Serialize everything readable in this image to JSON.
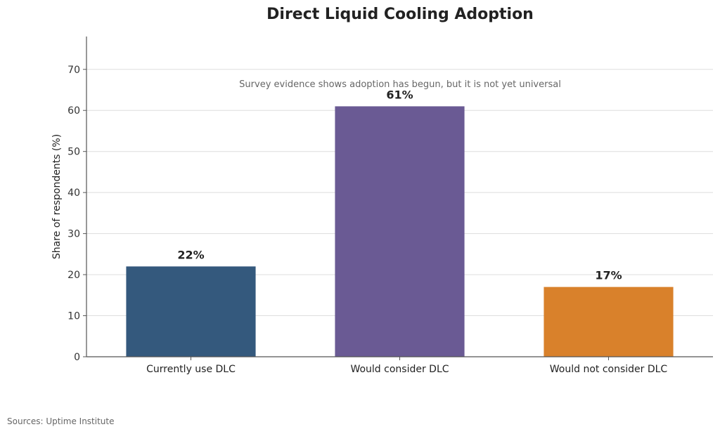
{
  "chart_data": {
    "type": "bar",
    "title": "Direct Liquid Cooling Adoption",
    "subtitle": "Survey evidence shows adoption has begun, but it is not yet universal",
    "xlabel": "",
    "ylabel": "Share of respondents (%)",
    "categories": [
      "Currently use DLC",
      "Would consider DLC",
      "Would not consider DLC"
    ],
    "values": [
      22,
      61,
      17
    ],
    "data_labels": [
      "22%",
      "61%",
      "17%"
    ],
    "colors": [
      "#34597d",
      "#6a5a94",
      "#d9812b"
    ],
    "ylim": [
      0,
      78
    ],
    "yticks": [
      0,
      10,
      20,
      30,
      40,
      50,
      60,
      70
    ],
    "grid": "horizontal",
    "legend": "none"
  },
  "footer": {
    "source": "Sources: Uptime Institute"
  }
}
